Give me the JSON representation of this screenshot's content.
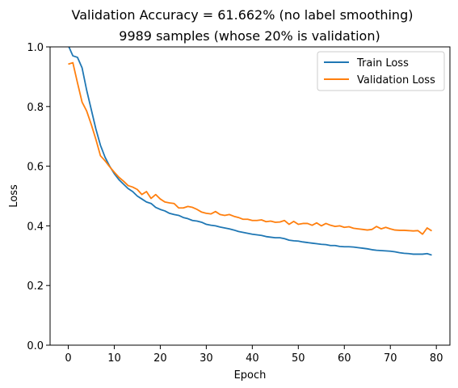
{
  "chart_data": {
    "type": "line",
    "title": "Validation Accuracy = 61.662% (no label smoothing)",
    "subtitle": "9989 samples (whose 20% is validation)",
    "xlabel": "Epoch",
    "ylabel": "Loss",
    "xlim": [
      -3.95,
      82.95
    ],
    "ylim": [
      0.0,
      1.0
    ],
    "xticks": [
      0,
      10,
      20,
      30,
      40,
      50,
      60,
      70,
      80
    ],
    "yticks": [
      0.0,
      0.2,
      0.4,
      0.6,
      0.8,
      1.0
    ],
    "ytick_labels": [
      "0.0",
      "0.2",
      "0.4",
      "0.6",
      "0.8",
      "1.0"
    ],
    "grid": false,
    "legend_position": "top-right",
    "series": [
      {
        "name": "Train Loss",
        "color": "#1f77b4",
        "x": [
          0,
          1,
          2,
          3,
          4,
          5,
          6,
          7,
          8,
          9,
          10,
          11,
          12,
          13,
          14,
          15,
          16,
          17,
          18,
          19,
          20,
          21,
          22,
          23,
          24,
          25,
          26,
          27,
          28,
          29,
          30,
          31,
          32,
          33,
          34,
          35,
          36,
          37,
          38,
          39,
          40,
          41,
          42,
          43,
          44,
          45,
          46,
          47,
          48,
          49,
          50,
          51,
          52,
          53,
          54,
          55,
          56,
          57,
          58,
          59,
          60,
          61,
          62,
          63,
          64,
          65,
          66,
          67,
          68,
          69,
          70,
          71,
          72,
          73,
          74,
          75,
          76,
          77,
          78,
          79
        ],
        "values": [
          1.005,
          0.97,
          0.965,
          0.93,
          0.855,
          0.79,
          0.725,
          0.67,
          0.63,
          0.6,
          0.575,
          0.555,
          0.54,
          0.525,
          0.515,
          0.5,
          0.49,
          0.48,
          0.475,
          0.462,
          0.455,
          0.45,
          0.442,
          0.438,
          0.435,
          0.428,
          0.424,
          0.418,
          0.416,
          0.412,
          0.405,
          0.402,
          0.4,
          0.396,
          0.393,
          0.39,
          0.386,
          0.381,
          0.378,
          0.375,
          0.372,
          0.37,
          0.368,
          0.364,
          0.362,
          0.36,
          0.36,
          0.357,
          0.352,
          0.35,
          0.349,
          0.346,
          0.344,
          0.342,
          0.34,
          0.338,
          0.337,
          0.334,
          0.334,
          0.331,
          0.33,
          0.33,
          0.329,
          0.327,
          0.325,
          0.323,
          0.32,
          0.318,
          0.317,
          0.316,
          0.315,
          0.313,
          0.31,
          0.308,
          0.307,
          0.305,
          0.305,
          0.305,
          0.307,
          0.302
        ]
      },
      {
        "name": "Validation Loss",
        "color": "#ff7f0e",
        "x": [
          0,
          1,
          2,
          3,
          4,
          5,
          6,
          7,
          8,
          9,
          10,
          11,
          12,
          13,
          14,
          15,
          16,
          17,
          18,
          19,
          20,
          21,
          22,
          23,
          24,
          25,
          26,
          27,
          28,
          29,
          30,
          31,
          32,
          33,
          34,
          35,
          36,
          37,
          38,
          39,
          40,
          41,
          42,
          43,
          44,
          45,
          46,
          47,
          48,
          49,
          50,
          51,
          52,
          53,
          54,
          55,
          56,
          57,
          58,
          59,
          60,
          61,
          62,
          63,
          64,
          65,
          66,
          67,
          68,
          69,
          70,
          71,
          72,
          73,
          74,
          75,
          76,
          77,
          78,
          79
        ],
        "values": [
          0.942,
          0.947,
          0.88,
          0.815,
          0.785,
          0.74,
          0.69,
          0.635,
          0.618,
          0.598,
          0.58,
          0.563,
          0.55,
          0.535,
          0.53,
          0.522,
          0.505,
          0.515,
          0.492,
          0.505,
          0.49,
          0.48,
          0.477,
          0.475,
          0.46,
          0.46,
          0.465,
          0.462,
          0.455,
          0.446,
          0.442,
          0.44,
          0.448,
          0.438,
          0.435,
          0.438,
          0.432,
          0.428,
          0.422,
          0.422,
          0.418,
          0.418,
          0.42,
          0.414,
          0.416,
          0.412,
          0.413,
          0.418,
          0.405,
          0.415,
          0.405,
          0.408,
          0.408,
          0.402,
          0.41,
          0.4,
          0.408,
          0.402,
          0.398,
          0.4,
          0.395,
          0.397,
          0.392,
          0.39,
          0.388,
          0.386,
          0.388,
          0.398,
          0.39,
          0.395,
          0.39,
          0.386,
          0.385,
          0.385,
          0.384,
          0.383,
          0.384,
          0.372,
          0.393,
          0.383
        ]
      }
    ]
  }
}
